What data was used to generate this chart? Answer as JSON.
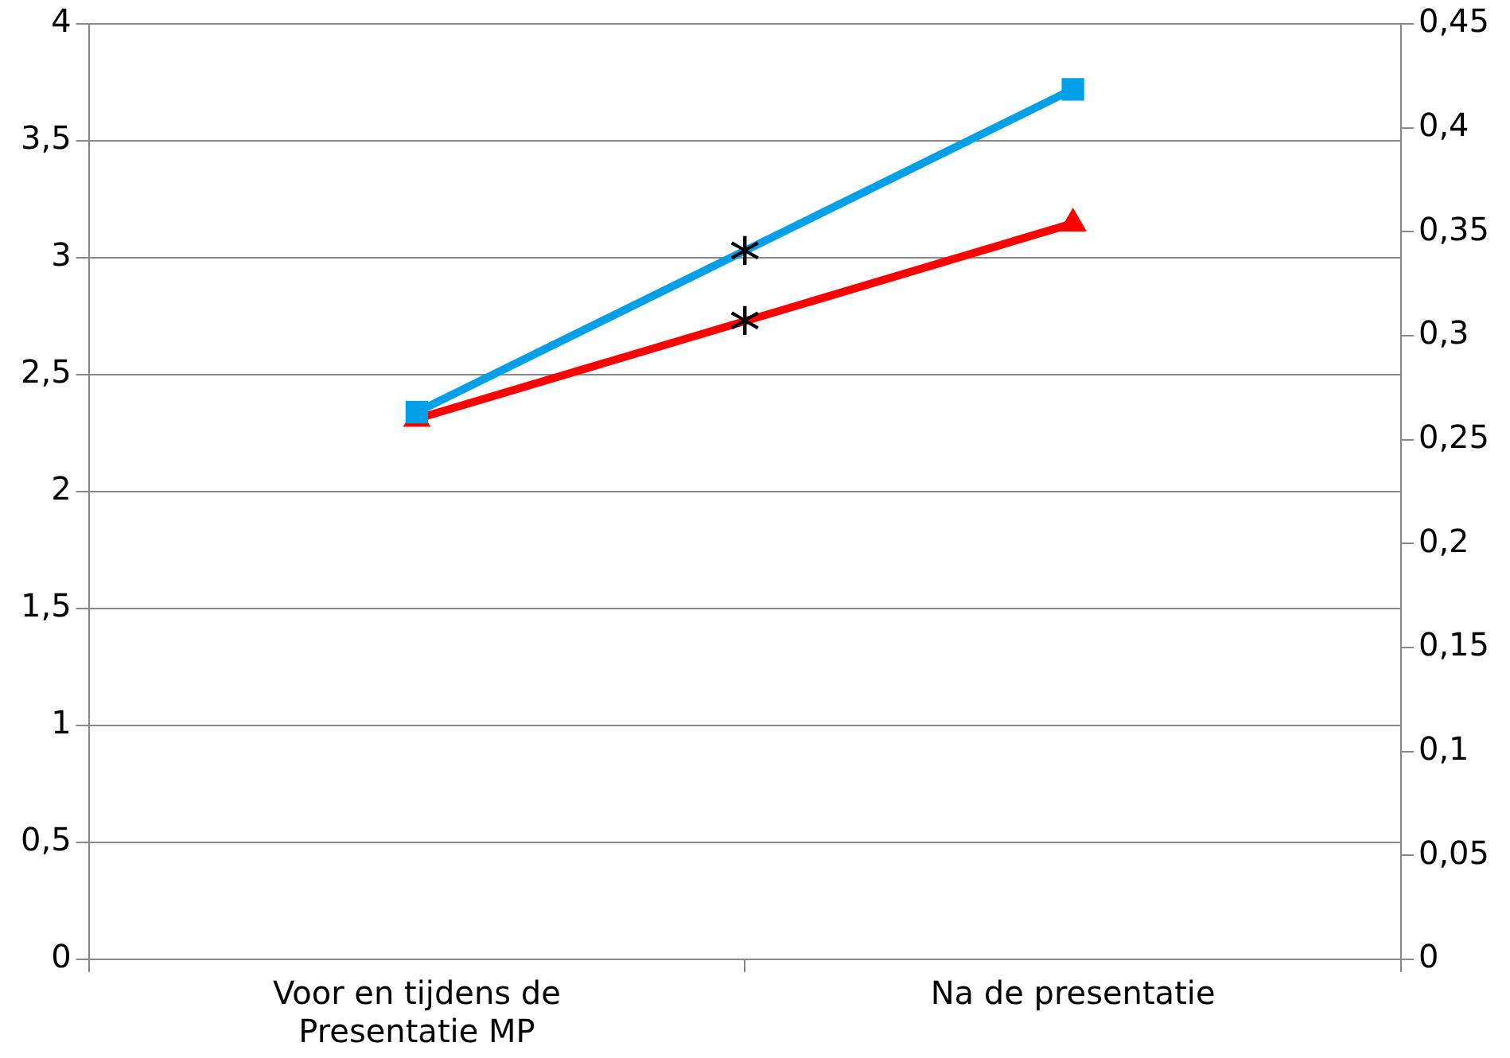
{
  "chart_data": {
    "type": "line",
    "categories": [
      "Voor en tijdens de Presentatie MP",
      "Na de presentatie"
    ],
    "series": [
      {
        "color": "#ff0000",
        "values": [
          0.26,
          0.354
        ],
        "axis": "y2",
        "marker": "triangle"
      },
      {
        "color": "#00a0e8",
        "values": [
          2.34,
          3.72
        ],
        "marker": "square"
      }
    ],
    "ylim": [
      0,
      4
    ],
    "yticks": [
      0,
      {
        "value": 0.5,
        "label": "0,5"
      },
      1,
      {
        "value": 1.5,
        "label": "1,5"
      },
      2,
      {
        "value": 2.5,
        "label": "2,5"
      },
      3,
      {
        "value": 3.5,
        "label": "3,5"
      },
      4
    ],
    "y2lim": [
      0,
      0.45
    ],
    "y2ticks": [
      0,
      {
        "value": 0.05,
        "label": "0,05"
      },
      {
        "value": 0.1,
        "label": "0,1"
      },
      {
        "value": 0.15,
        "label": "0,15"
      },
      {
        "value": 0.2,
        "label": "0,2"
      },
      {
        "value": 0.25,
        "label": "0,25"
      },
      {
        "value": 0.3,
        "label": "0,3"
      },
      {
        "value": 0.35,
        "label": "0,35"
      },
      {
        "value": 0.4,
        "label": "0,4"
      },
      {
        "value": 0.45,
        "label": "0,45"
      }
    ],
    "grid": "y",
    "legend": false,
    "line_style": "solid",
    "annotations": [
      "*",
      "*"
    ]
  }
}
